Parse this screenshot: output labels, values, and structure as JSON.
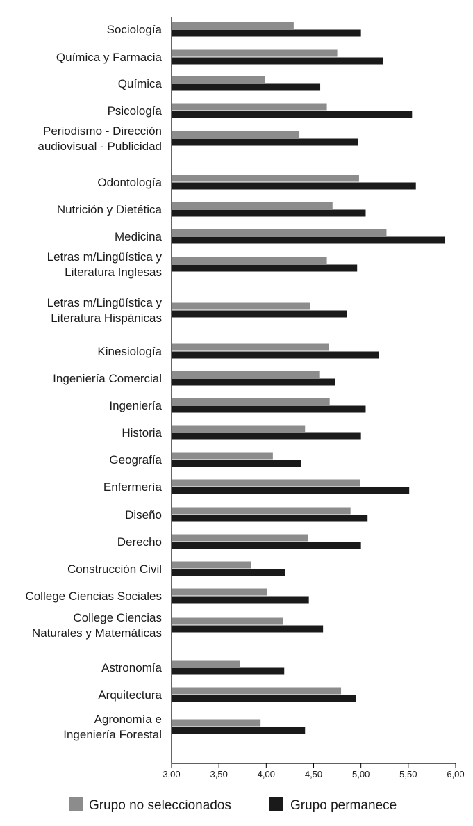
{
  "chart_data": {
    "type": "bar",
    "orientation": "horizontal",
    "categories": [
      "Sociología",
      "Química y Farmacia",
      "Química",
      "Psicología",
      "Periodismo - Dirección audiovisual - Publicidad",
      "Odontología",
      "Nutrición y Dietética",
      "Medicina",
      "Letras m/Lingüística y Literatura Inglesas",
      "Letras m/Lingüística y Literatura Hispánicas",
      "Kinesiología",
      "Ingeniería Comercial",
      "Ingeniería",
      "Historia",
      "Geografía",
      "Enfermería",
      "Diseño",
      "Derecho",
      "Construcción Civil",
      "College Ciencias Sociales",
      "College Ciencias Naturales y Matemáticas",
      "Astronomía",
      "Arquitectura",
      "Agronomía e Ingeniería Forestal"
    ],
    "category_lines": [
      [
        "Sociología"
      ],
      [
        "Química y Farmacia"
      ],
      [
        "Química"
      ],
      [
        "Psicología"
      ],
      [
        "Periodismo - Dirección",
        "audiovisual - Publicidad"
      ],
      [
        "Odontología"
      ],
      [
        "Nutrición y Dietética"
      ],
      [
        "Medicina"
      ],
      [
        "Letras m/Lingüística y",
        "Literatura Inglesas"
      ],
      [
        "Letras m/Lingüística y",
        "Literatura Hispánicas"
      ],
      [
        "Kinesiología"
      ],
      [
        "Ingeniería Comercial"
      ],
      [
        "Ingeniería"
      ],
      [
        "Historia"
      ],
      [
        "Geografía"
      ],
      [
        "Enfermería"
      ],
      [
        "Diseño"
      ],
      [
        "Derecho"
      ],
      [
        "Construcción Civil"
      ],
      [
        "College Ciencias Sociales"
      ],
      [
        "College Ciencias",
        "Naturales y Matemáticas"
      ],
      [
        "Astronomía"
      ],
      [
        "Arquitectura"
      ],
      [
        "Agronomía e",
        "Ingeniería Forestal"
      ]
    ],
    "series": [
      {
        "name": "Grupo no seleccionados",
        "color": "#8c8c8c",
        "values": [
          4.29,
          4.75,
          3.99,
          4.64,
          4.35,
          4.98,
          4.7,
          5.27,
          4.64,
          4.46,
          4.66,
          4.56,
          4.67,
          4.41,
          4.07,
          4.99,
          4.89,
          4.44,
          3.84,
          4.01,
          4.18,
          3.72,
          4.79,
          3.94
        ]
      },
      {
        "name": "Grupo permanece",
        "color": "#1a1a1a",
        "values": [
          5.0,
          5.23,
          4.57,
          5.54,
          4.97,
          5.58,
          5.05,
          5.89,
          4.96,
          4.85,
          5.19,
          4.73,
          5.05,
          5.0,
          4.37,
          5.51,
          5.07,
          5.0,
          4.2,
          4.45,
          4.6,
          4.19,
          4.95,
          4.41
        ]
      }
    ],
    "xlim": [
      3.0,
      6.0
    ],
    "xticks": [
      "3,00",
      "3,50",
      "4,00",
      "4,50",
      "5,00",
      "5,50",
      "6,00"
    ],
    "title": "",
    "xlabel": "",
    "ylabel": "",
    "legend_position": "bottom",
    "grid": false
  }
}
